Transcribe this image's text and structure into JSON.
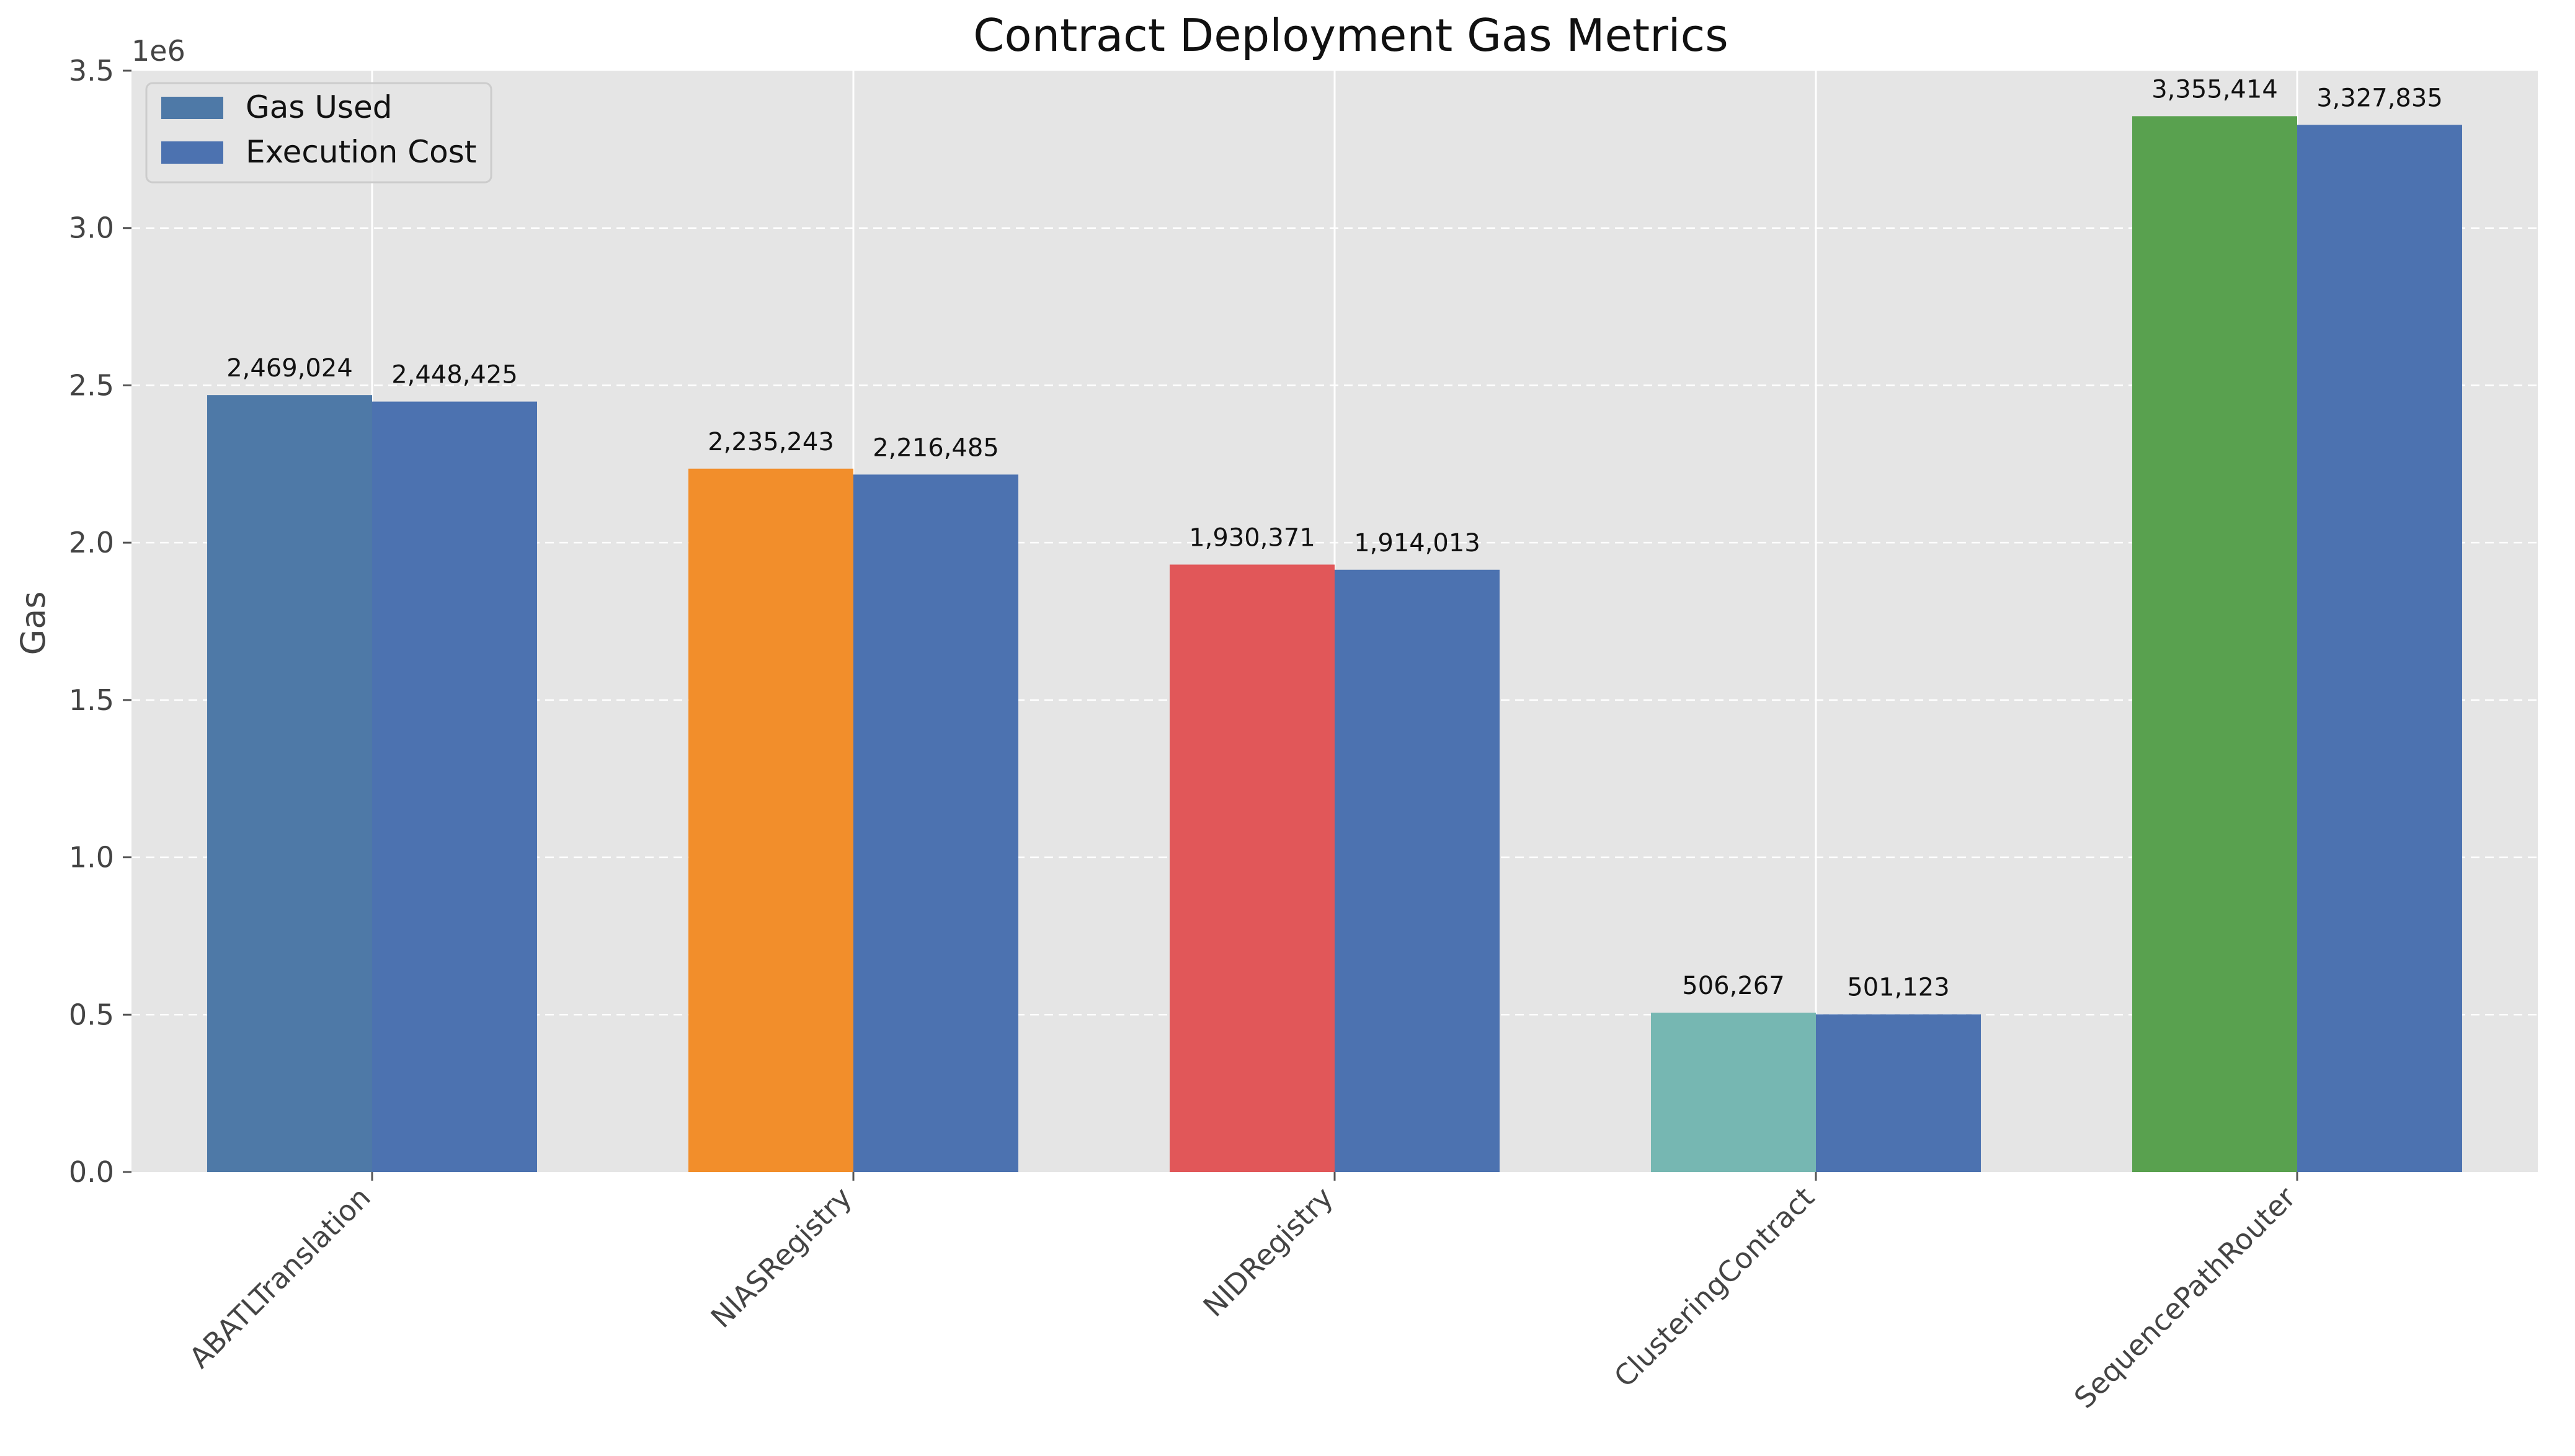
{
  "chart_data": {
    "type": "bar",
    "title": "Contract Deployment Gas Metrics",
    "xlabel": "",
    "ylabel": "Gas",
    "y_multiplier_label": "1e6",
    "ylim": [
      0,
      3500000
    ],
    "yticks": [
      0,
      500000,
      1000000,
      1500000,
      2000000,
      2500000,
      3000000,
      3500000
    ],
    "ytick_labels": [
      "0.0",
      "0.5",
      "1.0",
      "1.5",
      "2.0",
      "2.5",
      "3.0",
      "3.5"
    ],
    "categories": [
      "ABATLTranslation",
      "NIASRegistry",
      "NIDRegistry",
      "ClusteringContract",
      "SequencePathRouter"
    ],
    "series": [
      {
        "name": "Gas Used",
        "values": [
          2469024,
          2235243,
          1930371,
          506267,
          3355414
        ],
        "value_labels": [
          "2,469,024",
          "2,235,243",
          "1,930,371",
          "506,267",
          "3,355,414"
        ],
        "colors": [
          "#4e79a7",
          "#f28e2b",
          "#e15759",
          "#76b7b2",
          "#59a14f"
        ],
        "legend_color": "#4e79a7"
      },
      {
        "name": "Execution Cost",
        "values": [
          2448425,
          2216485,
          1914013,
          501123,
          3327835
        ],
        "value_labels": [
          "2,448,425",
          "2,216,485",
          "1,914,013",
          "501,123",
          "3,327,835"
        ],
        "colors": [
          "#4c72b0",
          "#4c72b0",
          "#4c72b0",
          "#4c72b0",
          "#4c72b0"
        ],
        "legend_color": "#4c72b0"
      }
    ],
    "grid": true,
    "legend_position": "top-left",
    "plot_background": "#e5e5e5"
  }
}
